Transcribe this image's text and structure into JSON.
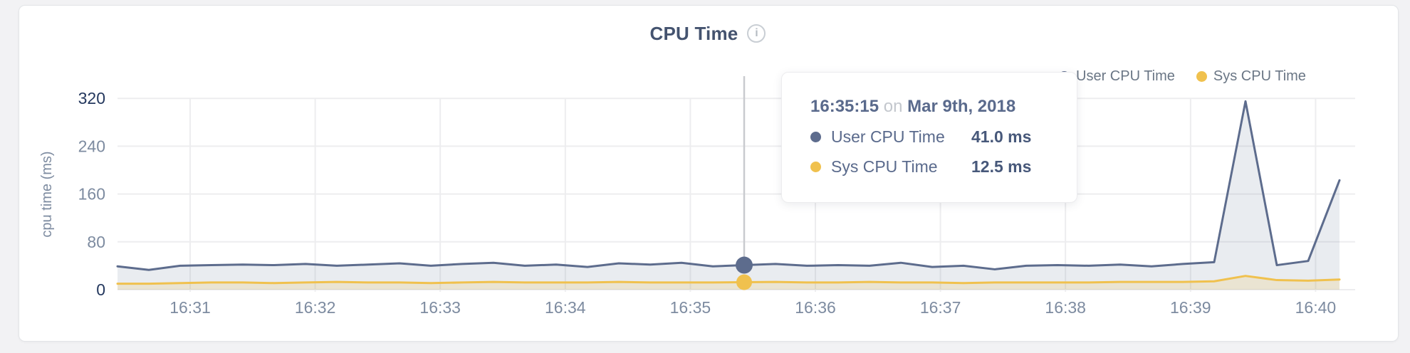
{
  "header": {
    "title": "CPU Time",
    "info_icon_glyph": "i"
  },
  "legend": {
    "items": [
      {
        "label": "User CPU Time",
        "color": "#5d6c8d"
      },
      {
        "label": "Sys CPU Time",
        "color": "#f0c14e"
      }
    ]
  },
  "tooltip": {
    "time": "16:35:15",
    "conjunction": "on",
    "date": "Mar 9th, 2018",
    "rows": [
      {
        "label": "User CPU Time",
        "value": "41.0 ms",
        "color": "#5d6c8d"
      },
      {
        "label": "Sys CPU Time",
        "value": "12.5 ms",
        "color": "#f0c14e"
      }
    ]
  },
  "chart_data": {
    "type": "area",
    "title": "CPU Time",
    "xlabel": "",
    "ylabel": "cpu time (ms)",
    "x_tick_labels": [
      "16:31",
      "16:32",
      "16:33",
      "16:34",
      "16:35",
      "16:36",
      "16:37",
      "16:38",
      "16:39",
      "16:40"
    ],
    "y_ticks": [
      0,
      80,
      160,
      240,
      320
    ],
    "ylim": [
      0,
      320
    ],
    "grid": true,
    "legend_position": "top-right",
    "highlight": {
      "index": 20,
      "time": "16:35:15",
      "user_ms": 41.0,
      "sys_ms": 12.5
    },
    "series": [
      {
        "name": "User CPU Time",
        "color": "#5d6c8d",
        "fill": "rgba(120,134,163,0.16)",
        "values": [
          39,
          33,
          40,
          41,
          42,
          41,
          43,
          40,
          42,
          44,
          40,
          43,
          45,
          40,
          42,
          38,
          44,
          42,
          45,
          39,
          41,
          43,
          40,
          41,
          40,
          45,
          38,
          40,
          34,
          40,
          41,
          40,
          42,
          39,
          43,
          46,
          315,
          41,
          48,
          183
        ]
      },
      {
        "name": "Sys CPU Time",
        "color": "#f0c14e",
        "fill": "rgba(240,193,78,0.18)",
        "values": [
          10,
          10,
          11,
          12,
          12,
          11,
          12,
          13,
          12,
          12,
          11,
          12,
          13,
          12,
          12,
          12,
          13,
          12,
          12,
          12,
          12.5,
          13,
          12,
          12,
          13,
          12,
          12,
          11,
          12,
          12,
          12,
          12,
          13,
          13,
          13,
          14,
          23,
          16,
          15,
          17
        ]
      }
    ],
    "colors": {
      "grid": "#ededef",
      "crosshair": "#c9cbcf",
      "tick_dark": "#24385e",
      "tick_light": "#7d8ba0"
    }
  }
}
